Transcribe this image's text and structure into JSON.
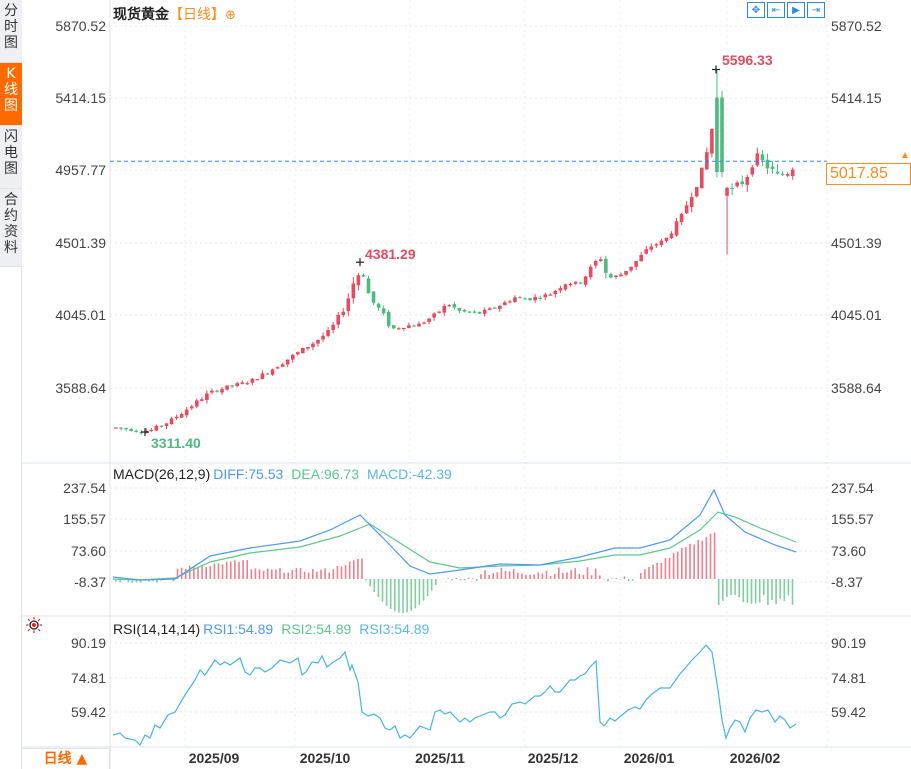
{
  "side_tabs": [
    {
      "label": "分时图",
      "active": false
    },
    {
      "label": "K线图",
      "active": true
    },
    {
      "label": "闪电图",
      "active": false
    },
    {
      "label": "合约资料",
      "active": false
    }
  ],
  "header": {
    "instrument": "现货黄金",
    "period": "【日线】",
    "add_icon": "⊕"
  },
  "toolbar": [
    {
      "name": "crosshair-button",
      "glyph": "✥"
    },
    {
      "name": "zoom-fit-button",
      "glyph": "⇤"
    },
    {
      "name": "play-button",
      "glyph": "▶"
    },
    {
      "name": "goto-latest-button",
      "glyph": "⇥"
    }
  ],
  "price_axis": {
    "labels": [
      "5870.52",
      "5414.15",
      "4957.77",
      "4501.39",
      "4045.01",
      "3588.64"
    ],
    "current_price": "5017.85",
    "high_label": "5596.33",
    "mid_high_label": "4381.29",
    "low_label": "3311.40"
  },
  "macd": {
    "title": "MACD(26,12,9)",
    "diff": "DIFF:75.53",
    "dea": "DEA:96.73",
    "macd": "MACD:-42.39",
    "axis_labels": [
      "237.54",
      "155.57",
      "73.60",
      "-8.37"
    ]
  },
  "rsi": {
    "title": "RSI(14,14,14)",
    "rsi1": "RSI1:54.89",
    "rsi2": "RSI2:54.89",
    "rsi3": "RSI3:54.89",
    "axis_labels": [
      "90.19",
      "74.81",
      "59.42"
    ]
  },
  "x_axis": {
    "labels": [
      "2025/09",
      "2025/10",
      "2025/11",
      "2025/12",
      "2026/01",
      "2026/02"
    ]
  },
  "period_selector": "日线 ▲",
  "colors": {
    "up": "#e84a5f",
    "down": "#4cbb7f",
    "diff_line": "#4d9af0",
    "dea_line": "#5cc98a",
    "rsi_line": "#47b5e6",
    "accent": "#ff8a1f",
    "current_price_line": "#2b8be0"
  },
  "chart_data": [
    {
      "type": "candlestick",
      "title": "现货黄金【日线】",
      "x_ticks": [
        "2025/09",
        "2025/10",
        "2025/11",
        "2025/12",
        "2026/01",
        "2026/02"
      ],
      "y_ticks": [
        3588.64,
        4045.01,
        4501.39,
        4957.77,
        5414.15,
        5870.52
      ],
      "ylim": [
        3200,
        5950
      ],
      "annotations": [
        {
          "label": "5596.33",
          "type": "high",
          "date_approx": "2026/01 end"
        },
        {
          "label": "4381.29",
          "type": "local high",
          "date_approx": "2025/10 mid"
        },
        {
          "label": "3311.40",
          "type": "low",
          "date_approx": "2025/08 early"
        }
      ],
      "current_price": 5017.85,
      "close_path_approx": [
        {
          "x": "2025/08",
          "close": 3330
        },
        {
          "x": "2025/09",
          "close": 3650
        },
        {
          "x": "2025/09 end",
          "close": 3860
        },
        {
          "x": "2025/10",
          "close": 3900
        },
        {
          "x": "2025/10 mid",
          "close": 4350
        },
        {
          "x": "2025/10 end",
          "close": 4000
        },
        {
          "x": "2025/11",
          "close": 4000
        },
        {
          "x": "2025/11 mid",
          "close": 4100
        },
        {
          "x": "2025/12",
          "close": 4200
        },
        {
          "x": "2025/12 end",
          "close": 4350
        },
        {
          "x": "2026/01",
          "close": 4480
        },
        {
          "x": "2026/01 end",
          "close": 5400
        },
        {
          "x": "2026/02",
          "close": 4950
        },
        {
          "x": "2026/02 mid",
          "close": 5017.85
        }
      ]
    },
    {
      "type": "line+bar",
      "title": "MACD(26,12,9)",
      "series": [
        {
          "name": "DIFF",
          "last": 75.53
        },
        {
          "name": "DEA",
          "last": 96.73
        },
        {
          "name": "MACD",
          "last": -42.39
        }
      ],
      "y_ticks": [
        -8.37,
        73.6,
        155.57,
        237.54
      ]
    },
    {
      "type": "line",
      "title": "RSI(14,14,14)",
      "series": [
        {
          "name": "RSI1",
          "last": 54.89
        },
        {
          "name": "RSI2",
          "last": 54.89
        },
        {
          "name": "RSI3",
          "last": 54.89
        }
      ],
      "y_ticks": [
        59.42,
        74.81,
        90.19
      ]
    }
  ]
}
